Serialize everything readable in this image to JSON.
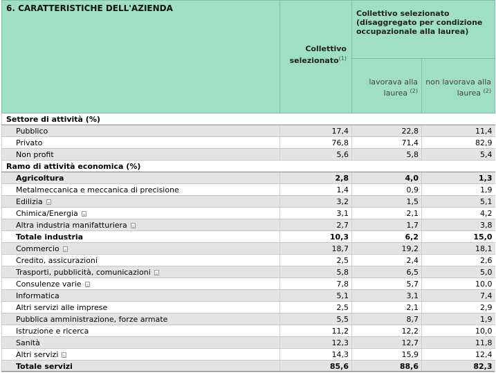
{
  "header": {
    "title": "6. CARATTERISTICHE DELL'AZIENDA",
    "col_collettivo": "Collettivo selezionato",
    "col_collettivo_note": "(1)",
    "group_label": "Collettivo selezionato (disaggregato per condizione occupazionale alla laurea)",
    "col_lavorava": "lavorava alla laurea",
    "col_lavorava_note": "(2)",
    "col_non_lavorava": "non lavorava alla laurea",
    "col_non_lavorava_note": "(2)"
  },
  "sections": [
    {
      "title": "Settore di attività (%)",
      "rows": [
        {
          "label": "Pubblico",
          "values": [
            "17,4",
            "22,8",
            "11,4"
          ],
          "icon": false,
          "bold": false
        },
        {
          "label": "Privato",
          "values": [
            "76,8",
            "71,4",
            "82,9"
          ],
          "icon": false,
          "bold": false
        },
        {
          "label": "Non profit",
          "values": [
            "5,6",
            "5,8",
            "5,4"
          ],
          "icon": false,
          "bold": false
        }
      ]
    },
    {
      "title": "Ramo di attività economica (%)",
      "rows": [
        {
          "label": "Agricoltura",
          "values": [
            "2,8",
            "4,0",
            "1,3"
          ],
          "icon": false,
          "bold": true
        },
        {
          "label": "Metalmeccanica e meccanica di precisione",
          "values": [
            "1,4",
            "0,9",
            "1,9"
          ],
          "icon": false,
          "bold": false
        },
        {
          "label": "Edilizia",
          "values": [
            "3,2",
            "1,5",
            "5,1"
          ],
          "icon": true,
          "bold": false
        },
        {
          "label": "Chimica/Energia",
          "values": [
            "3,1",
            "2,1",
            "4,2"
          ],
          "icon": true,
          "bold": false
        },
        {
          "label": "Altra industria manifatturiera",
          "values": [
            "2,7",
            "1,7",
            "3,8"
          ],
          "icon": true,
          "bold": false
        },
        {
          "label": "Totale industria",
          "values": [
            "10,3",
            "6,2",
            "15,0"
          ],
          "icon": false,
          "bold": true
        },
        {
          "label": "Commercio",
          "values": [
            "18,7",
            "19,2",
            "18,1"
          ],
          "icon": true,
          "bold": false
        },
        {
          "label": "Credito, assicurazioni",
          "values": [
            "2,5",
            "2,4",
            "2,6"
          ],
          "icon": false,
          "bold": false
        },
        {
          "label": "Trasporti, pubblicità, comunicazioni",
          "values": [
            "5,8",
            "6,5",
            "5,0"
          ],
          "icon": true,
          "bold": false
        },
        {
          "label": "Consulenze varie",
          "values": [
            "7,8",
            "5,7",
            "10,0"
          ],
          "icon": true,
          "bold": false
        },
        {
          "label": "Informatica",
          "values": [
            "5,1",
            "3,1",
            "7,4"
          ],
          "icon": false,
          "bold": false
        },
        {
          "label": "Altri servizi alle imprese",
          "values": [
            "2,5",
            "2,1",
            "2,9"
          ],
          "icon": false,
          "bold": false
        },
        {
          "label": "Pubblica amministrazione, forze armate",
          "values": [
            "5,5",
            "8,7",
            "1,9"
          ],
          "icon": false,
          "bold": false
        },
        {
          "label": "Istruzione e ricerca",
          "values": [
            "11,2",
            "12,2",
            "10,0"
          ],
          "icon": false,
          "bold": false
        },
        {
          "label": "Sanità",
          "values": [
            "12,3",
            "12,7",
            "11,8"
          ],
          "icon": false,
          "bold": false
        },
        {
          "label": "Altri servizi",
          "values": [
            "14,3",
            "15,9",
            "12,4"
          ],
          "icon": true,
          "bold": false
        },
        {
          "label": "Totale servizi",
          "values": [
            "85,6",
            "88,6",
            "82,3"
          ],
          "icon": false,
          "bold": true
        }
      ]
    }
  ],
  "colors": {
    "header_bg": "#9fdfc6",
    "row_alt_bg": "#e4e4e4"
  },
  "icons": {
    "row_info": "document-icon"
  }
}
